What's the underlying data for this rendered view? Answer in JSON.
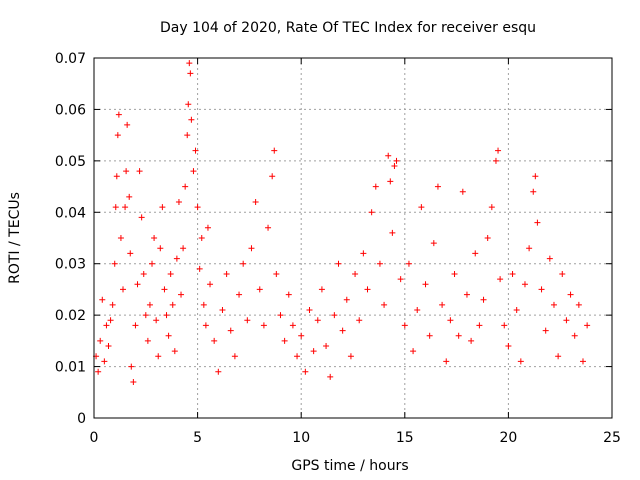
{
  "chart_data": {
    "type": "scatter",
    "title": "Day 104 of 2020, Rate Of TEC Index for receiver esqu",
    "xlabel": "GPS time / hours",
    "ylabel": "ROTI / TECUs",
    "xlim": [
      0,
      25
    ],
    "ylim": [
      0,
      0.07
    ],
    "x_ticks": [
      0,
      5,
      10,
      15,
      20,
      25
    ],
    "x_tick_labels": [
      "0",
      "5",
      "10",
      "15",
      "20",
      "25"
    ],
    "y_ticks": [
      0,
      0.01,
      0.02,
      0.03,
      0.04,
      0.05,
      0.06,
      0.07
    ],
    "y_tick_labels": [
      "0",
      "0.01",
      "0.02",
      "0.03",
      "0.04",
      "0.05",
      "0.06",
      "0.07"
    ],
    "grid": true,
    "marker": "plus",
    "color": "#ff0000",
    "series": [
      {
        "points": [
          [
            0.1,
            0.012
          ],
          [
            0.2,
            0.009
          ],
          [
            0.3,
            0.015
          ],
          [
            0.4,
            0.023
          ],
          [
            0.5,
            0.011
          ],
          [
            0.6,
            0.018
          ],
          [
            0.7,
            0.014
          ],
          [
            0.8,
            0.019
          ],
          [
            0.9,
            0.022
          ],
          [
            1.0,
            0.03
          ],
          [
            1.05,
            0.041
          ],
          [
            1.1,
            0.047
          ],
          [
            1.15,
            0.055
          ],
          [
            1.2,
            0.059
          ],
          [
            1.3,
            0.035
          ],
          [
            1.4,
            0.025
          ],
          [
            1.5,
            0.041
          ],
          [
            1.55,
            0.048
          ],
          [
            1.6,
            0.057
          ],
          [
            1.7,
            0.043
          ],
          [
            1.75,
            0.032
          ],
          [
            1.8,
            0.01
          ],
          [
            1.9,
            0.007
          ],
          [
            2.0,
            0.018
          ],
          [
            2.1,
            0.026
          ],
          [
            2.2,
            0.048
          ],
          [
            2.3,
            0.039
          ],
          [
            2.4,
            0.028
          ],
          [
            2.5,
            0.02
          ],
          [
            2.6,
            0.015
          ],
          [
            2.7,
            0.022
          ],
          [
            2.8,
            0.03
          ],
          [
            2.9,
            0.035
          ],
          [
            3.0,
            0.019
          ],
          [
            3.1,
            0.012
          ],
          [
            3.2,
            0.033
          ],
          [
            3.3,
            0.041
          ],
          [
            3.4,
            0.025
          ],
          [
            3.5,
            0.02
          ],
          [
            3.6,
            0.016
          ],
          [
            3.7,
            0.028
          ],
          [
            3.8,
            0.022
          ],
          [
            3.9,
            0.013
          ],
          [
            4.0,
            0.031
          ],
          [
            4.1,
            0.042
          ],
          [
            4.2,
            0.024
          ],
          [
            4.3,
            0.033
          ],
          [
            4.4,
            0.045
          ],
          [
            4.5,
            0.055
          ],
          [
            4.55,
            0.061
          ],
          [
            4.6,
            0.069
          ],
          [
            4.65,
            0.067
          ],
          [
            4.7,
            0.058
          ],
          [
            4.8,
            0.048
          ],
          [
            4.9,
            0.052
          ],
          [
            5.0,
            0.041
          ],
          [
            5.1,
            0.029
          ],
          [
            5.2,
            0.035
          ],
          [
            5.3,
            0.022
          ],
          [
            5.4,
            0.018
          ],
          [
            5.5,
            0.037
          ],
          [
            5.6,
            0.026
          ],
          [
            5.8,
            0.015
          ],
          [
            6.0,
            0.009
          ],
          [
            6.2,
            0.021
          ],
          [
            6.4,
            0.028
          ],
          [
            6.6,
            0.017
          ],
          [
            6.8,
            0.012
          ],
          [
            7.0,
            0.024
          ],
          [
            7.2,
            0.03
          ],
          [
            7.4,
            0.019
          ],
          [
            7.6,
            0.033
          ],
          [
            7.8,
            0.042
          ],
          [
            8.0,
            0.025
          ],
          [
            8.2,
            0.018
          ],
          [
            8.4,
            0.037
          ],
          [
            8.6,
            0.047
          ],
          [
            8.7,
            0.052
          ],
          [
            8.8,
            0.028
          ],
          [
            9.0,
            0.02
          ],
          [
            9.2,
            0.015
          ],
          [
            9.4,
            0.024
          ],
          [
            9.6,
            0.018
          ],
          [
            9.8,
            0.012
          ],
          [
            10.0,
            0.016
          ],
          [
            10.2,
            0.009
          ],
          [
            10.4,
            0.021
          ],
          [
            10.6,
            0.013
          ],
          [
            10.8,
            0.019
          ],
          [
            11.0,
            0.025
          ],
          [
            11.2,
            0.014
          ],
          [
            11.4,
            0.008
          ],
          [
            11.6,
            0.02
          ],
          [
            11.8,
            0.03
          ],
          [
            12.0,
            0.017
          ],
          [
            12.2,
            0.023
          ],
          [
            12.4,
            0.012
          ],
          [
            12.6,
            0.028
          ],
          [
            12.8,
            0.019
          ],
          [
            13.0,
            0.032
          ],
          [
            13.2,
            0.025
          ],
          [
            13.4,
            0.04
          ],
          [
            13.6,
            0.045
          ],
          [
            13.8,
            0.03
          ],
          [
            14.0,
            0.022
          ],
          [
            14.2,
            0.051
          ],
          [
            14.3,
            0.046
          ],
          [
            14.4,
            0.036
          ],
          [
            14.5,
            0.049
          ],
          [
            14.6,
            0.05
          ],
          [
            14.8,
            0.027
          ],
          [
            15.0,
            0.018
          ],
          [
            15.2,
            0.03
          ],
          [
            15.4,
            0.013
          ],
          [
            15.6,
            0.021
          ],
          [
            15.8,
            0.041
          ],
          [
            16.0,
            0.026
          ],
          [
            16.2,
            0.016
          ],
          [
            16.4,
            0.034
          ],
          [
            16.6,
            0.045
          ],
          [
            16.8,
            0.022
          ],
          [
            17.0,
            0.011
          ],
          [
            17.2,
            0.019
          ],
          [
            17.4,
            0.028
          ],
          [
            17.6,
            0.016
          ],
          [
            17.8,
            0.044
          ],
          [
            18.0,
            0.024
          ],
          [
            18.2,
            0.015
          ],
          [
            18.4,
            0.032
          ],
          [
            18.6,
            0.018
          ],
          [
            18.8,
            0.023
          ],
          [
            19.0,
            0.035
          ],
          [
            19.2,
            0.041
          ],
          [
            19.4,
            0.05
          ],
          [
            19.5,
            0.052
          ],
          [
            19.6,
            0.027
          ],
          [
            19.8,
            0.018
          ],
          [
            20.0,
            0.014
          ],
          [
            20.2,
            0.028
          ],
          [
            20.4,
            0.021
          ],
          [
            20.6,
            0.011
          ],
          [
            20.8,
            0.026
          ],
          [
            21.0,
            0.033
          ],
          [
            21.2,
            0.044
          ],
          [
            21.3,
            0.047
          ],
          [
            21.4,
            0.038
          ],
          [
            21.6,
            0.025
          ],
          [
            21.8,
            0.017
          ],
          [
            22.0,
            0.031
          ],
          [
            22.2,
            0.022
          ],
          [
            22.4,
            0.012
          ],
          [
            22.6,
            0.028
          ],
          [
            22.8,
            0.019
          ],
          [
            23.0,
            0.024
          ],
          [
            23.2,
            0.016
          ],
          [
            23.4,
            0.022
          ],
          [
            23.6,
            0.011
          ],
          [
            23.8,
            0.018
          ]
        ]
      }
    ]
  }
}
